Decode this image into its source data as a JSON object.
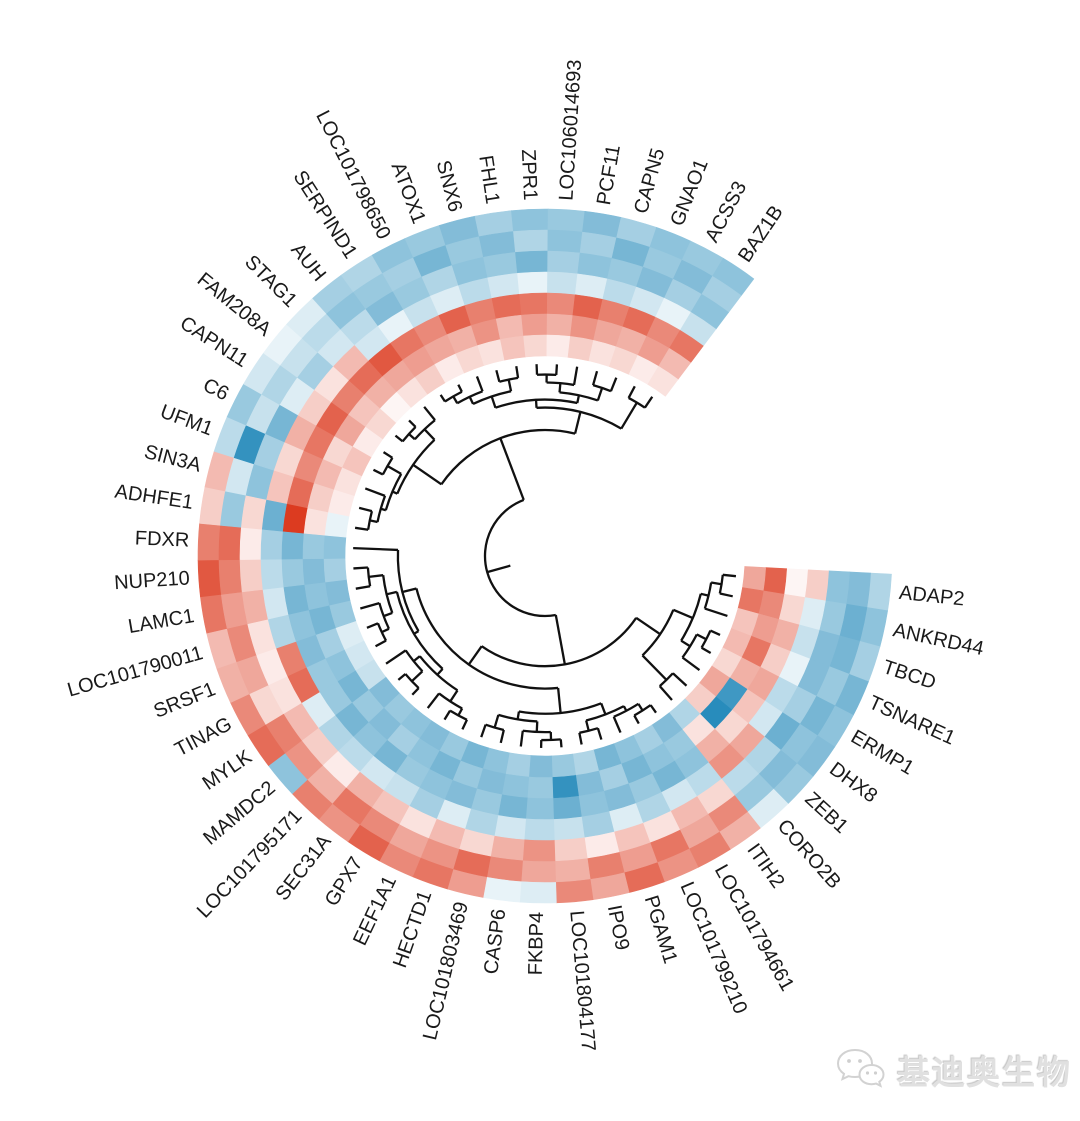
{
  "watermark": {
    "icon": "wechat-bubbles-icon",
    "text": "基迪奥生物"
  },
  "chart_data": {
    "type": "heatmap",
    "subtype": "circular_heatmap_with_dendrogram",
    "title": "",
    "n_rings": 7,
    "ring_order": "outer_to_inner",
    "legend": "none",
    "layout_hints": {
      "start_angle_deg": 93,
      "gap_degrees": 56,
      "direction": "clockwise",
      "dendrogram_position": "center"
    },
    "color_scale": {
      "negative_max": "#1d86b8",
      "midpoint": "#ffffff",
      "positive_max": "#dc3b20",
      "domain": [
        -2,
        2
      ]
    },
    "genes": [
      "ADAP2",
      "ANKRD44",
      "TBCD",
      "TSNARE1",
      "ERMP1",
      "DHX8",
      "ZEB1",
      "CORO2B",
      "ITIH2",
      "LOC101794661",
      "LOC101799210",
      "PGAM1",
      "IPO9",
      "LOC101804177",
      "FKBP4",
      "CASP6",
      "LOC101803469",
      "HECTD1",
      "EEF1A1",
      "GPX7",
      "SEC31A",
      "LOC101795171",
      "MAMDC2",
      "MYLK",
      "TINAG",
      "SRSF1",
      "LOC101790011",
      "LAMC1",
      "NUP210",
      "FDXR",
      "ADHFE1",
      "SIN3A",
      "UFM1",
      "C6",
      "CAPN11",
      "FAM208A",
      "STAG1",
      "AUH",
      "SERPIND1",
      "LOC101798650",
      "ATOX1",
      "SNX6",
      "FHL1",
      "ZPR1",
      "LOC106014693",
      "PCF11",
      "CAPN5",
      "GNAO1",
      "ACSS3",
      "BAZ1B"
    ],
    "values": [
      [
        -0.7,
        -1.1,
        -1.0,
        0.5,
        0.1,
        1.6,
        0.9
      ],
      [
        -1.0,
        -1.3,
        -0.9,
        -0.3,
        0.4,
        1.2,
        1.4
      ],
      [
        -0.8,
        -1.2,
        -1.1,
        -0.5,
        0.8,
        1.0,
        0.6
      ],
      [
        -1.2,
        -0.9,
        -1.1,
        -0.2,
        0.5,
        1.4,
        0.7
      ],
      [
        -1.0,
        -1.2,
        -0.8,
        -0.6,
        0.9,
        0.8,
        0.4
      ],
      [
        -1.1,
        -1.0,
        -1.3,
        -0.4,
        0.6,
        -1.7,
        0.9
      ],
      [
        -0.9,
        -1.1,
        -0.7,
        0.9,
        0.4,
        -1.9,
        0.5
      ],
      [
        -0.3,
        -0.9,
        -0.6,
        1.1,
        0.8,
        0.3,
        -0.7
      ],
      [
        0.8,
        1.2,
        0.4,
        -0.6,
        -1.0,
        -0.9,
        -1.1
      ],
      [
        1.3,
        0.9,
        0.7,
        -0.4,
        -1.2,
        -1.0,
        -0.8
      ],
      [
        1.1,
        1.4,
        0.3,
        -0.7,
        -0.9,
        -1.2,
        -1.0
      ],
      [
        1.5,
        1.0,
        0.6,
        -0.3,
        -1.1,
        -0.8,
        -1.2
      ],
      [
        0.9,
        1.3,
        0.2,
        -0.8,
        -1.0,
        -1.1,
        -0.7
      ],
      [
        1.2,
        0.8,
        0.5,
        -0.5,
        -1.3,
        -1.8,
        -0.9
      ],
      [
        -0.3,
        0.9,
        1.1,
        -0.6,
        -1.0,
        -0.9,
        -1.1
      ],
      [
        -0.2,
        1.2,
        0.8,
        -0.4,
        -1.2,
        -1.0,
        -0.8
      ],
      [
        1.0,
        1.5,
        0.4,
        -0.7,
        -0.9,
        -1.1,
        -1.0
      ],
      [
        1.4,
        1.1,
        0.7,
        -0.3,
        -1.1,
        -0.9,
        -1.2
      ],
      [
        1.2,
        0.9,
        0.3,
        -0.8,
        -1.0,
        -1.2,
        -0.9
      ],
      [
        1.6,
        1.2,
        0.6,
        -0.5,
        -0.9,
        -1.0,
        -1.1
      ],
      [
        1.1,
        1.4,
        0.8,
        -0.4,
        -1.2,
        -0.8,
        -1.0
      ],
      [
        1.3,
        0.8,
        0.2,
        -0.6,
        -1.0,
        -1.1,
        -0.9
      ],
      [
        -1.0,
        1.1,
        0.5,
        -0.7,
        -1.2,
        -0.9,
        -1.1
      ],
      [
        1.5,
        1.3,
        0.7,
        -0.3,
        -0.9,
        -1.2,
        -0.5
      ],
      [
        1.2,
        0.4,
        0.3,
        1.5,
        -0.9,
        -1.0,
        -0.4
      ],
      [
        0.8,
        0.9,
        0.2,
        1.3,
        -1.1,
        -0.8,
        -0.3
      ],
      [
        0.7,
        1.2,
        0.3,
        -0.7,
        -1.0,
        -1.2,
        -0.9
      ],
      [
        1.4,
        1.0,
        0.8,
        -0.4,
        -1.2,
        -1.0,
        -1.1
      ],
      [
        1.7,
        1.3,
        0.5,
        -0.6,
        -0.9,
        -1.1,
        -0.8
      ],
      [
        1.3,
        1.5,
        0.2,
        -0.8,
        -1.2,
        -0.9,
        -1.0
      ],
      [
        0.5,
        -0.9,
        0.4,
        -1.3,
        2.0,
        0.3,
        -0.2
      ],
      [
        0.7,
        -0.4,
        -1.0,
        0.6,
        1.5,
        0.5,
        0.2
      ],
      [
        -0.6,
        -1.8,
        -0.8,
        0.4,
        1.2,
        0.7,
        0.3
      ],
      [
        -0.9,
        -0.5,
        -1.2,
        0.8,
        1.4,
        0.4,
        0.6
      ],
      [
        -0.4,
        -0.7,
        -0.3,
        0.5,
        1.6,
        0.9,
        0.2
      ],
      [
        -0.2,
        -0.5,
        -0.8,
        0.3,
        1.3,
        0.6,
        0.4
      ],
      [
        -0.3,
        -0.6,
        -0.4,
        0.7,
        1.5,
        0.8,
        0.1
      ],
      [
        -0.8,
        -1.0,
        -0.6,
        -0.4,
        1.7,
        0.9,
        0.3
      ],
      [
        -0.7,
        -0.9,
        -1.1,
        -0.2,
        1.4,
        1.0,
        0.5
      ],
      [
        -1.0,
        -0.8,
        -0.9,
        -0.5,
        1.2,
        0.9,
        0.2
      ],
      [
        -0.9,
        -1.2,
        -0.7,
        -0.3,
        1.6,
        0.8,
        0.4
      ],
      [
        -1.1,
        -0.9,
        -1.0,
        -0.6,
        1.3,
        1.1,
        0.3
      ],
      [
        -0.8,
        -1.1,
        -0.9,
        -0.4,
        1.5,
        0.7,
        0.6
      ],
      [
        -1.0,
        -0.7,
        -1.2,
        -0.2,
        1.4,
        1.0,
        0.4
      ],
      [
        -0.9,
        -1.0,
        -0.8,
        -0.5,
        1.2,
        0.8,
        0.2
      ],
      [
        -1.1,
        -0.8,
        -1.0,
        -0.3,
        1.6,
        1.1,
        0.5
      ],
      [
        -0.8,
        -1.2,
        -0.9,
        -0.6,
        1.3,
        0.9,
        0.3
      ],
      [
        -1.0,
        -0.9,
        -1.1,
        -0.4,
        1.5,
        0.8,
        0.4
      ],
      [
        -0.9,
        -1.1,
        -0.8,
        -0.2,
        1.2,
        1.0,
        0.2
      ],
      [
        -1.0,
        -0.8,
        -1.0,
        -0.5,
        1.4,
        0.7,
        0.3
      ]
    ],
    "dendrogram": [
      1.0,
      [
        0.5,
        [
          0.24,
          [
            0.2,
            [
              0.16,
              [
                0.1,
                30,
                31
              ],
              32
            ],
            [
              0.08,
              33,
              34
            ]
          ],
          [
            0.13,
            [
              0.07,
              35,
              36
            ],
            37
          ]
        ],
        [
          0.33,
          [
            0.27,
            [
              0.18,
              [
                0.12,
                [
                  0.06,
                  38,
                  39
                ],
                40
              ],
              [
                0.09,
                41,
                42
              ]
            ],
            [
              0.21,
              [
                0.14,
                [
                  0.08,
                  43,
                  44
                ],
                45
              ],
              [
                0.11,
                46,
                47
              ]
            ]
          ],
          [
            0.1,
            48,
            49
          ]
        ]
      ],
      [
        0.62,
        [
          0.4,
          [
            0.24,
            [
              0.18,
              [
                0.1,
                0,
                1
              ],
              2
            ],
            [
              0.16,
              [
                0.08,
                3,
                4
              ],
              5
            ]
          ],
          [
            0.14,
            6,
            7
          ]
        ],
        [
          0.45,
          [
            0.26,
            [
              0.17,
              [
                0.13,
                [
                  0.07,
                  8,
                  9
                ],
                10
              ],
              [
                0.09,
                11,
                12
              ]
            ],
            [
              0.2,
              [
                0.12,
                [
                  0.06,
                  13,
                  14
                ],
                15
              ],
              [
                0.1,
                16,
                17
              ]
            ]
          ],
          [
            0.34,
            [
              0.3,
              [
                0.24,
                [
                  0.14,
                  [
                    0.08,
                    18,
                    19
                  ],
                  20
                ],
                [
                  0.18,
                  [
                    0.07,
                    21,
                    22
                  ],
                  23
                ]
              ],
              [
                0.22,
                [
                  0.15,
                  [
                    0.09,
                    24,
                    25
                  ],
                  26
                ],
                [
                  0.11,
                  27,
                  28
                ]
              ]
            ],
            29
          ]
        ]
      ]
    ]
  }
}
